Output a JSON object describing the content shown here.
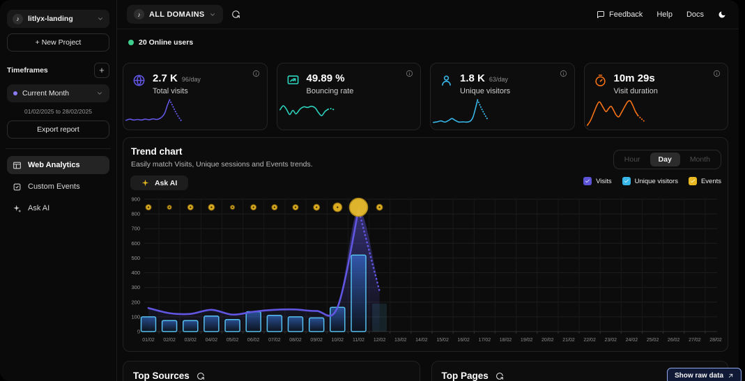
{
  "sidebar": {
    "project": {
      "name": "litlyx-landing",
      "logo_glyph": "♪"
    },
    "new_project_label": "+ New Project",
    "timeframes_label": "Timeframes",
    "timeframe_selected": "Current Month",
    "timeframe_range": "01/02/2025 to 28/02/2025",
    "export_label": "Export report",
    "nav": [
      {
        "label": "Web Analytics",
        "icon": "layout",
        "active": true
      },
      {
        "label": "Custom Events",
        "icon": "events",
        "active": false
      },
      {
        "label": "Ask AI",
        "icon": "sparkles",
        "active": false
      }
    ]
  },
  "header": {
    "domain_selector": "ALL DOMAINS",
    "links": [
      {
        "label": "Feedback",
        "icon": "chat"
      },
      {
        "label": "Help",
        "icon": null
      },
      {
        "label": "Docs",
        "icon": null
      }
    ]
  },
  "online": {
    "count_label": "20 Online users",
    "dot_color": "#3ecf8e"
  },
  "stats": [
    {
      "value": "2.7 K",
      "per_day": "96/day",
      "label": "Total visits",
      "icon": "globe",
      "color": "#6156e2",
      "spark_solid": [
        [
          2,
          78
        ],
        [
          8,
          74
        ],
        [
          14,
          77
        ],
        [
          20,
          75
        ],
        [
          26,
          77
        ],
        [
          32,
          74
        ],
        [
          38,
          76
        ],
        [
          44,
          73
        ],
        [
          50,
          75
        ],
        [
          56,
          70
        ],
        [
          62,
          55
        ],
        [
          66,
          30
        ],
        [
          70,
          8
        ]
      ],
      "spark_dotted": [
        [
          70,
          8
        ],
        [
          75,
          30
        ],
        [
          80,
          52
        ],
        [
          85,
          70
        ],
        [
          89,
          82
        ]
      ]
    },
    {
      "value": "49.89 %",
      "per_day": "",
      "label": "Bouncing rate",
      "icon": "bounce",
      "color": "#2dd4bf",
      "spark_solid": [
        [
          2,
          42
        ],
        [
          7,
          28
        ],
        [
          12,
          40
        ],
        [
          17,
          58
        ],
        [
          22,
          44
        ],
        [
          27,
          56
        ],
        [
          33,
          40
        ],
        [
          39,
          32
        ],
        [
          45,
          34
        ],
        [
          51,
          30
        ],
        [
          57,
          36
        ],
        [
          62,
          52
        ],
        [
          67,
          62
        ],
        [
          72,
          48
        ],
        [
          77,
          40
        ]
      ],
      "spark_dotted": [
        [
          77,
          40
        ],
        [
          82,
          38
        ],
        [
          86,
          42
        ]
      ]
    },
    {
      "value": "1.8 K",
      "per_day": "63/day",
      "label": "Unique visitors",
      "icon": "user",
      "color": "#38b6e8",
      "spark_solid": [
        [
          2,
          85
        ],
        [
          8,
          83
        ],
        [
          14,
          80
        ],
        [
          20,
          84
        ],
        [
          26,
          78
        ],
        [
          31,
          72
        ],
        [
          36,
          78
        ],
        [
          42,
          84
        ],
        [
          48,
          83
        ],
        [
          54,
          84
        ],
        [
          60,
          80
        ],
        [
          64,
          66
        ],
        [
          68,
          34
        ],
        [
          71,
          8
        ]
      ],
      "spark_dotted": [
        [
          71,
          8
        ],
        [
          75,
          28
        ],
        [
          79,
          46
        ],
        [
          83,
          62
        ],
        [
          87,
          76
        ]
      ]
    },
    {
      "value": "10m 29s",
      "per_day": "",
      "label": "Visit duration",
      "icon": "timer",
      "color": "#f97316",
      "spark_solid": [
        [
          2,
          95
        ],
        [
          7,
          78
        ],
        [
          12,
          52
        ],
        [
          17,
          26
        ],
        [
          21,
          15
        ],
        [
          26,
          32
        ],
        [
          31,
          48
        ],
        [
          35,
          38
        ],
        [
          39,
          30
        ],
        [
          43,
          44
        ],
        [
          47,
          60
        ],
        [
          51,
          66
        ],
        [
          55,
          52
        ],
        [
          60,
          32
        ],
        [
          65,
          14
        ],
        [
          69,
          12
        ],
        [
          73,
          28
        ],
        [
          77,
          48
        ],
        [
          81,
          62
        ]
      ],
      "spark_dotted": [
        [
          81,
          62
        ],
        [
          86,
          72
        ],
        [
          90,
          80
        ]
      ]
    }
  ],
  "trend": {
    "title": "Trend chart",
    "subtitle": "Easily match Visits, Unique sessions and Events trends.",
    "ask_ai_label": "Ask AI",
    "granularity": [
      "Hour",
      "Day",
      "Month"
    ],
    "granularity_active": "Day",
    "legend": [
      {
        "label": "Visits",
        "color": "#5b54d6"
      },
      {
        "label": "Unique visitors",
        "color": "#38b6e8"
      },
      {
        "label": "Events",
        "color": "#e8b923"
      }
    ]
  },
  "chart_data": {
    "type": "mixed",
    "x": [
      "01/02",
      "02/02",
      "03/02",
      "04/02",
      "05/02",
      "06/02",
      "07/02",
      "08/02",
      "09/02",
      "10/02",
      "11/02",
      "12/02",
      "13/02",
      "14/02",
      "15/02",
      "16/02",
      "17/02",
      "18/02",
      "19/02",
      "20/02",
      "21/02",
      "22/02",
      "23/02",
      "24/02",
      "25/02",
      "26/02",
      "27/02",
      "28/02"
    ],
    "ylim": [
      0,
      900
    ],
    "yticks": [
      0,
      100,
      200,
      300,
      400,
      500,
      600,
      700,
      800,
      900
    ],
    "grid": true,
    "legend_position": "top-right",
    "series": [
      {
        "name": "Visits",
        "type": "line",
        "color": "#6156e2",
        "values": [
          160,
          125,
          120,
          148,
          115,
          135,
          148,
          150,
          140,
          165,
          830,
          275
        ],
        "dotted_from_index": 10
      },
      {
        "name": "Unique visitors",
        "type": "bar",
        "color": "#56c0f0",
        "values": [
          100,
          75,
          75,
          105,
          82,
          135,
          110,
          100,
          93,
          165,
          520,
          190
        ],
        "partial_last": true
      },
      {
        "name": "Events",
        "type": "bubble",
        "color": "#e6b422",
        "bubble_y": 845,
        "radii": [
          4,
          3,
          4,
          4.5,
          3,
          4,
          4,
          4,
          4.5,
          6.5,
          13,
          4.5
        ]
      }
    ]
  },
  "bottom": {
    "top_sources_title": "Top Sources",
    "top_pages_title": "Top Pages",
    "show_raw_label": "Show raw data"
  }
}
